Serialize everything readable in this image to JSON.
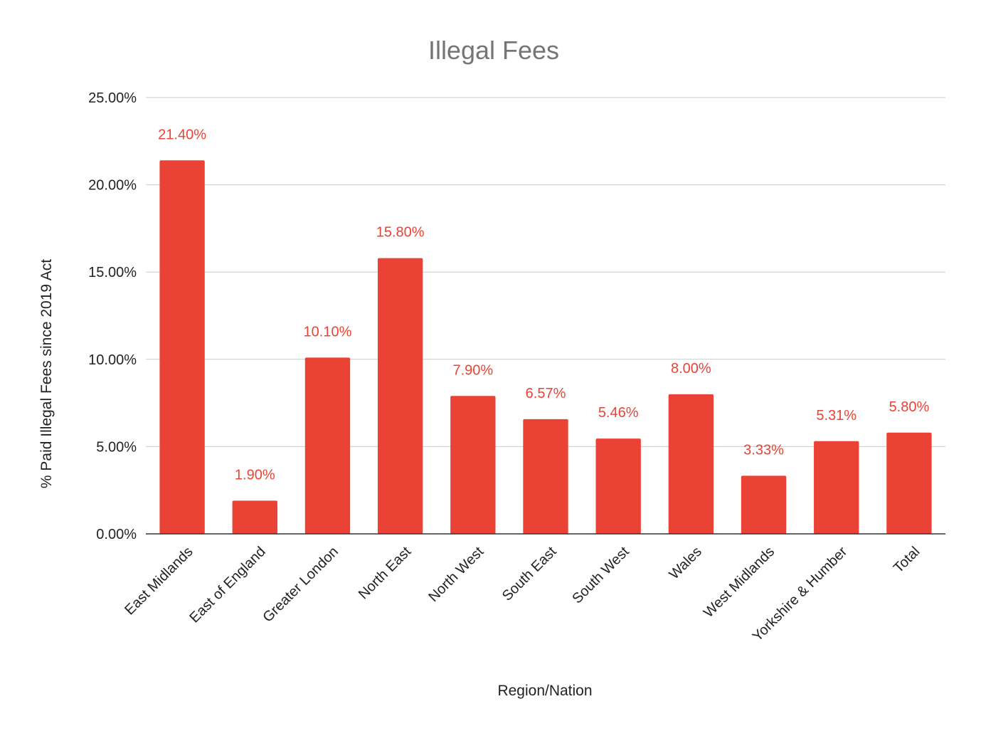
{
  "chart_data": {
    "type": "bar",
    "title": "Illegal Fees",
    "xlabel": "Region/Nation",
    "ylabel": "% Paid Illegal Fees since 2019 Act",
    "categories": [
      "East Midlands",
      "East of England",
      "Greater London",
      "North East",
      "North West",
      "South East",
      "South West",
      "Wales",
      "West Midlands",
      "Yorkshire & Humber",
      "Total"
    ],
    "values": [
      21.4,
      1.9,
      10.1,
      15.8,
      7.9,
      6.57,
      5.46,
      8.0,
      3.33,
      5.31,
      5.8
    ],
    "data_labels": [
      "21.40%",
      "1.90%",
      "10.10%",
      "15.80%",
      "7.90%",
      "6.57%",
      "5.46%",
      "8.00%",
      "3.33%",
      "5.31%",
      "5.80%"
    ],
    "ylim": [
      0,
      25
    ],
    "yticks": [
      0,
      5,
      10,
      15,
      20,
      25
    ],
    "ytick_labels": [
      "0.00%",
      "5.00%",
      "10.00%",
      "15.00%",
      "20.00%",
      "25.00%"
    ],
    "grid": true,
    "bar_color": "#ea4335",
    "label_color": "#ea4335"
  }
}
